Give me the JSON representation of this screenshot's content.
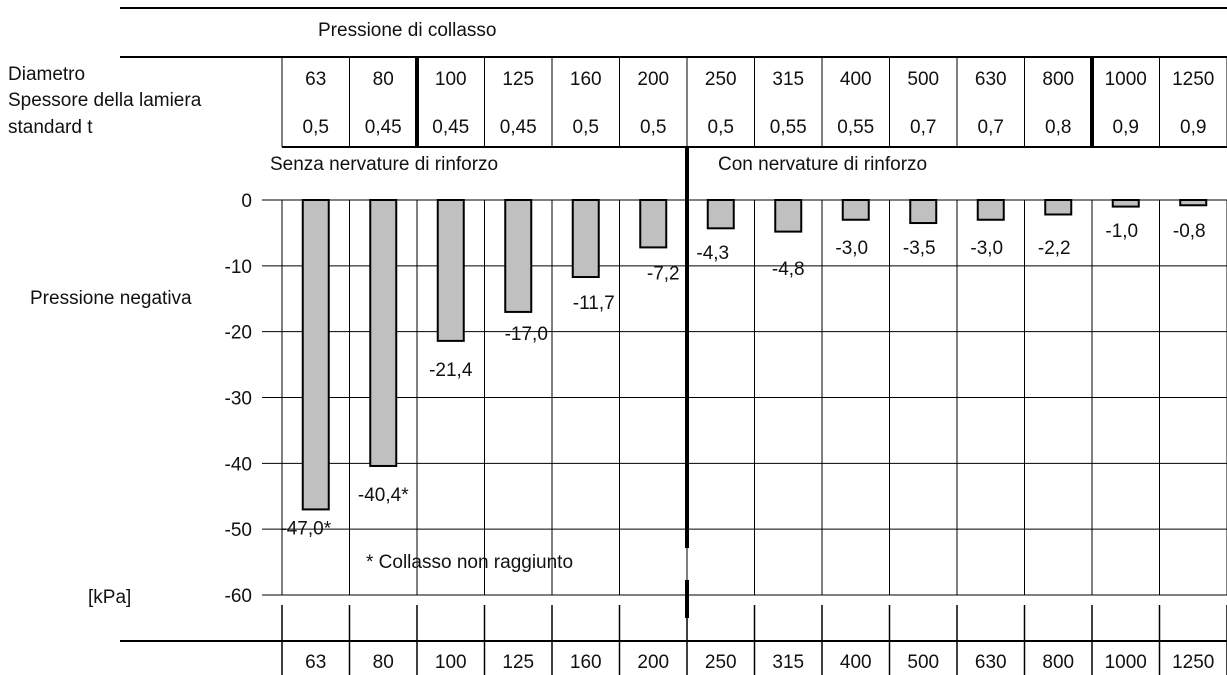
{
  "chart_data": {
    "type": "bar",
    "title": "Pressione di collasso",
    "row_labels": {
      "diameter": "Diametro",
      "thickness_line1": "Spessore della lamiera",
      "thickness_line2": "standard t"
    },
    "categories": [
      "63",
      "80",
      "100",
      "125",
      "160",
      "200",
      "250",
      "315",
      "400",
      "500",
      "630",
      "800",
      "1000",
      "1250"
    ],
    "thickness": [
      "0,5",
      "0,45",
      "0,45",
      "0,45",
      "0,5",
      "0,5",
      "0,5",
      "0,55",
      "0,55",
      "0,7",
      "0,7",
      "0,8",
      "0,9",
      "0,9"
    ],
    "values": [
      -47.0,
      -40.4,
      -21.4,
      -17.0,
      -11.7,
      -7.2,
      -4.3,
      -4.8,
      -3.0,
      -3.5,
      -3.0,
      -2.2,
      -1.0,
      -0.8
    ],
    "value_labels": [
      "-47,0",
      "-40,4",
      "-21,4",
      "-17,0",
      "-11,7",
      "-7,2",
      "-4,3",
      "-4,8",
      "-3,0",
      "-3,5",
      "-3,0",
      "-2,2",
      "-1,0",
      "-0,8"
    ],
    "not_collapsed_flags": [
      true,
      true,
      false,
      false,
      false,
      false,
      false,
      false,
      false,
      false,
      false,
      false,
      false,
      false
    ],
    "section_labels": [
      "Senza nervature di rinforzo",
      "Con nervature di rinforzo"
    ],
    "ylabel": "Pressione negativa",
    "yunit": "[kPa]",
    "yticks": [
      0,
      -10,
      -20,
      -30,
      -40,
      -50,
      -60
    ],
    "ylim": [
      -60,
      0
    ],
    "grid": true,
    "footnote": "* Collasso non raggiunto",
    "bar_color": "#c0c0c0",
    "line_color": "#000000"
  }
}
